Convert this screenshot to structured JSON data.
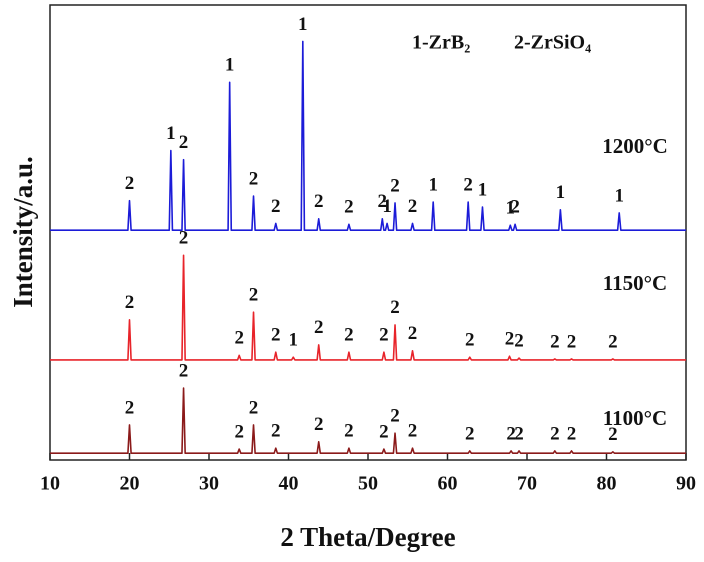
{
  "chart_data": {
    "type": "line",
    "xlabel": "2 Theta/Degree",
    "ylabel": "Intensity/a.u.",
    "legend_text": [
      "1-ZrB₂",
      "2-ZrSiO₄"
    ],
    "xlim": [
      10,
      90
    ],
    "xticks": [
      10,
      20,
      30,
      40,
      50,
      60,
      70,
      80,
      90
    ],
    "ylim": [
      0,
      100
    ],
    "series": [
      {
        "name": "1200°C",
        "color": "#1c1cd8",
        "x": [
          10,
          19.8,
          20,
          20.2,
          25,
          25.2,
          25.4,
          26.6,
          26.8,
          27,
          32.4,
          32.6,
          32.8,
          35.4,
          35.6,
          35.8,
          38.2,
          38.4,
          38.6,
          41.6,
          41.8,
          42,
          43.6,
          43.8,
          44,
          47.4,
          47.6,
          47.8,
          51.6,
          51.8,
          52,
          52.2,
          52.4,
          52.6,
          53.2,
          53.4,
          53.6,
          55.4,
          55.6,
          55.8,
          58,
          58.2,
          58.4,
          62.4,
          62.6,
          62.8,
          64.2,
          64.4,
          64.6,
          67.7,
          67.9,
          68.1,
          68.3,
          68.5,
          68.7,
          74,
          74.2,
          74.4,
          81.4,
          81.6,
          81.8,
          90
        ],
        "values": [
          50.5,
          50.5,
          57,
          50.5,
          50.5,
          68,
          50.5,
          50.5,
          66,
          50.5,
          50.5,
          83,
          50.5,
          50.5,
          58,
          50.5,
          50.5,
          52,
          50.5,
          50.5,
          92,
          50.5,
          50.5,
          53,
          50.5,
          50.5,
          51.8,
          50.5,
          50.5,
          53,
          50.5,
          50.5,
          52,
          50.5,
          50.5,
          56.5,
          50.5,
          50.5,
          52,
          50.5,
          50.5,
          56.7,
          50.5,
          50.5,
          56.7,
          50.5,
          50.5,
          55.6,
          50.5,
          50.5,
          51.6,
          50.5,
          50.5,
          51.8,
          50.5,
          50.5,
          55,
          50.5,
          50.5,
          54.3,
          50.5,
          50.5
        ],
        "peak_labels": [
          {
            "text": "2",
            "x": 20
          },
          {
            "text": "1",
            "x": 25.2
          },
          {
            "text": "2",
            "x": 26.8
          },
          {
            "text": "1",
            "x": 32.6
          },
          {
            "text": "2",
            "x": 35.6
          },
          {
            "text": "2",
            "x": 38.4
          },
          {
            "text": "1",
            "x": 41.8
          },
          {
            "text": "2",
            "x": 43.8
          },
          {
            "text": "2",
            "x": 47.6
          },
          {
            "text": "2",
            "x": 51.8
          },
          {
            "text": "1",
            "x": 52.4
          },
          {
            "text": "2",
            "x": 53.4
          },
          {
            "text": "2",
            "x": 55.6
          },
          {
            "text": "1",
            "x": 58.2
          },
          {
            "text": "2",
            "x": 62.6
          },
          {
            "text": "1",
            "x": 64.4
          },
          {
            "text": "1",
            "x": 67.9
          },
          {
            "text": "2",
            "x": 68.5
          },
          {
            "text": "1",
            "x": 74.2
          },
          {
            "text": "1",
            "x": 81.6
          }
        ]
      },
      {
        "name": "1150°C",
        "color": "#e8242a",
        "x": [
          10,
          19.8,
          20,
          20.2,
          26.6,
          26.8,
          27,
          33.6,
          33.8,
          34,
          35.4,
          35.6,
          35.8,
          38.2,
          38.4,
          38.6,
          40.4,
          40.6,
          40.8,
          43.6,
          43.8,
          44,
          47.4,
          47.6,
          47.8,
          51.8,
          52,
          52.2,
          53.2,
          53.4,
          53.6,
          55.4,
          55.6,
          55.8,
          62.6,
          62.8,
          63,
          67.6,
          67.8,
          68,
          68.8,
          69,
          69.2,
          73.3,
          73.5,
          73.7,
          75.4,
          75.6,
          75.8,
          80.6,
          80.8,
          81,
          90
        ],
        "values": [
          22,
          22,
          30.8,
          22,
          22,
          45,
          22,
          22,
          23,
          22,
          22,
          32.5,
          22,
          22,
          23.7,
          22,
          22,
          22.6,
          22,
          22,
          25.3,
          22,
          22,
          23.7,
          22,
          22,
          23.7,
          22,
          22,
          29.7,
          22,
          22,
          24,
          22,
          22,
          22.6,
          22,
          22,
          22.8,
          22,
          22,
          22.4,
          22,
          22,
          22.2,
          22,
          22,
          22.2,
          22,
          22,
          22.2,
          22,
          22
        ],
        "peak_labels": [
          {
            "text": "2",
            "x": 20
          },
          {
            "text": "2",
            "x": 26.8
          },
          {
            "text": "2",
            "x": 33.8
          },
          {
            "text": "2",
            "x": 35.6
          },
          {
            "text": "2",
            "x": 38.4
          },
          {
            "text": "1",
            "x": 40.6
          },
          {
            "text": "2",
            "x": 43.8
          },
          {
            "text": "2",
            "x": 47.6
          },
          {
            "text": "2",
            "x": 52
          },
          {
            "text": "2",
            "x": 53.4
          },
          {
            "text": "2",
            "x": 55.6
          },
          {
            "text": "2",
            "x": 62.8
          },
          {
            "text": "2",
            "x": 67.8
          },
          {
            "text": "2",
            "x": 69
          },
          {
            "text": "2",
            "x": 73.5
          },
          {
            "text": "2",
            "x": 75.6
          },
          {
            "text": "2",
            "x": 80.8
          }
        ]
      },
      {
        "name": "1100°C",
        "color": "#8b1a1a",
        "x": [
          10,
          19.8,
          20,
          20.2,
          26.6,
          26.8,
          27,
          33.6,
          33.8,
          34,
          35.4,
          35.6,
          35.8,
          38.2,
          38.4,
          38.6,
          43.6,
          43.8,
          44,
          47.4,
          47.6,
          47.8,
          51.8,
          52,
          52.2,
          53.2,
          53.4,
          53.6,
          55.4,
          55.6,
          55.8,
          62.6,
          62.8,
          63,
          67.8,
          68,
          68.2,
          68.8,
          69,
          69.2,
          73.3,
          73.5,
          73.7,
          75.4,
          75.6,
          75.8,
          80.6,
          80.8,
          81,
          90
        ],
        "values": [
          1.5,
          1.5,
          7.7,
          1.5,
          1.5,
          15.8,
          1.5,
          1.5,
          2.4,
          1.5,
          1.5,
          7.7,
          1.5,
          1.5,
          2.6,
          1.5,
          1.5,
          4,
          1.5,
          1.5,
          2.6,
          1.5,
          1.5,
          2.4,
          1.5,
          1.5,
          5.9,
          1.5,
          1.5,
          2.6,
          1.5,
          1.5,
          2,
          1.5,
          1.5,
          2,
          1.5,
          1.5,
          2,
          1.5,
          1.5,
          2,
          1.5,
          1.5,
          2,
          1.5,
          1.5,
          1.8,
          1.5,
          1.5
        ],
        "peak_labels": [
          {
            "text": "2",
            "x": 20
          },
          {
            "text": "2",
            "x": 26.8
          },
          {
            "text": "2",
            "x": 33.8
          },
          {
            "text": "2",
            "x": 35.6
          },
          {
            "text": "2",
            "x": 38.4
          },
          {
            "text": "2",
            "x": 43.8
          },
          {
            "text": "2",
            "x": 47.6
          },
          {
            "text": "2",
            "x": 52
          },
          {
            "text": "2",
            "x": 53.4
          },
          {
            "text": "2",
            "x": 55.6
          },
          {
            "text": "2",
            "x": 62.8
          },
          {
            "text": "2",
            "x": 68
          },
          {
            "text": "2",
            "x": 69
          },
          {
            "text": "2",
            "x": 73.5
          },
          {
            "text": "2",
            "x": 75.6
          },
          {
            "text": "2",
            "x": 80.8
          }
        ]
      }
    ]
  }
}
